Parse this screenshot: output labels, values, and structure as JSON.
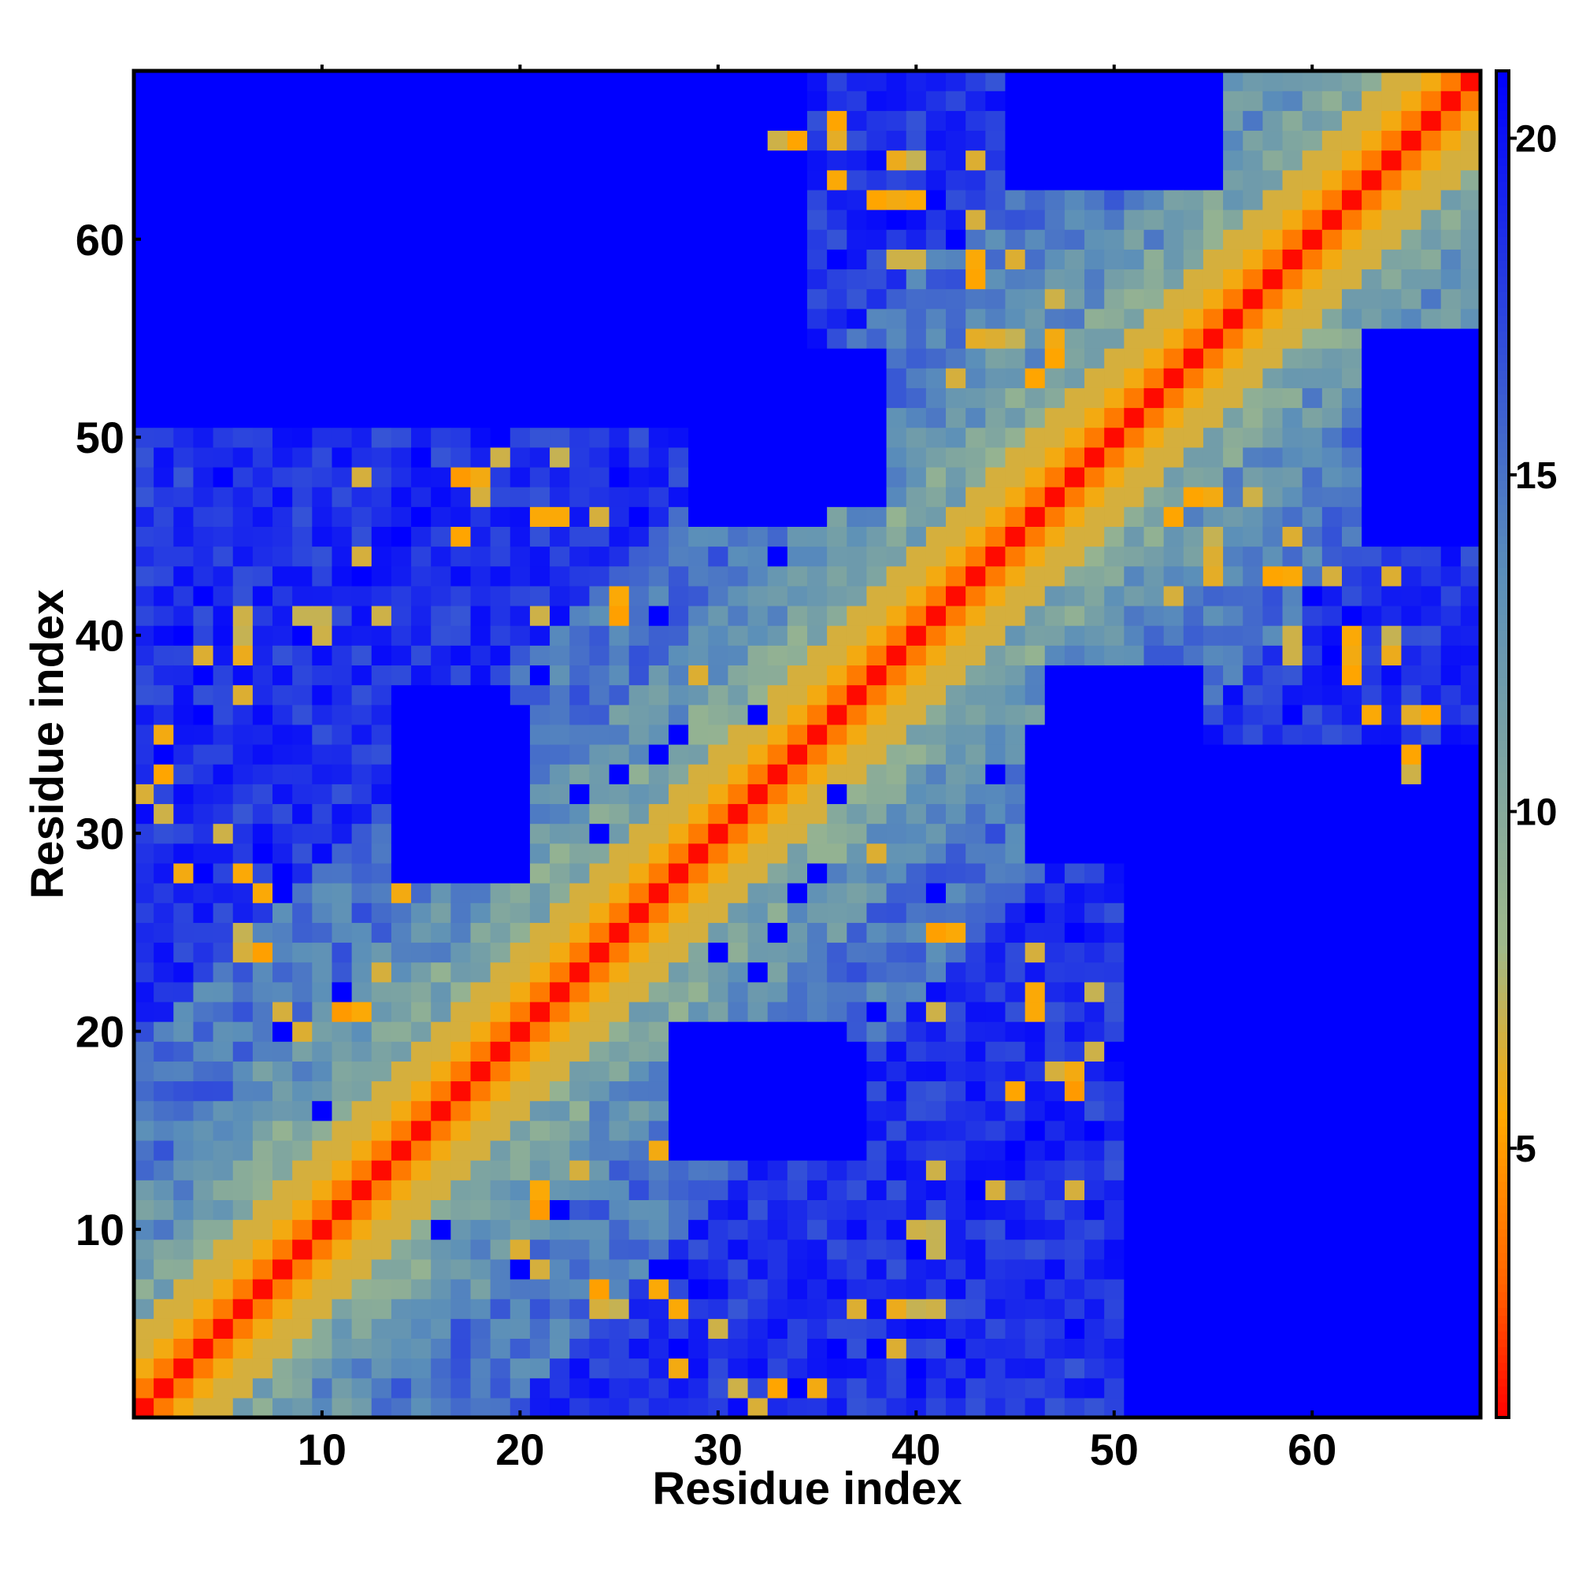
{
  "chart_data": {
    "type": "heatmap",
    "title": "",
    "xlabel": "Residue index",
    "ylabel": "Residue index",
    "n_residues": 68,
    "xlim": [
      0.5,
      68.5
    ],
    "ylim": [
      0.5,
      68.5
    ],
    "x_ticks": [
      10,
      20,
      30,
      40,
      50,
      60
    ],
    "y_ticks": [
      10,
      20,
      30,
      40,
      50,
      60
    ],
    "colorbar": {
      "range": [
        1,
        21
      ],
      "ticks": [
        5,
        10,
        15,
        20
      ],
      "colors": [
        "#ff0000",
        "#ff6400",
        "#ffa800",
        "#9fb98a",
        "#5b8fb9",
        "#0000ff"
      ],
      "color_breaks": [
        3,
        5.5,
        8,
        13.5,
        21
      ]
    },
    "matrix": {
      "symmetric": true,
      "diagonal": {
        "max_offset": 2,
        "values": [
          1.2,
          3.8,
          5.8
        ]
      },
      "band": [
        {
          "offset_range": [
            3,
            4
          ],
          "value": 6.6
        },
        {
          "offset_range": [
            5,
            7
          ],
          "value": 10.8
        },
        {
          "offset_range": [
            8,
            11
          ],
          "value": 12.8
        },
        {
          "offset_range": [
            12,
            18
          ],
          "value": 15.0
        }
      ],
      "far_value": 18.5,
      "blue_regions": [
        {
          "rows": [
            1,
            34
          ],
          "cols": [
            51,
            68
          ],
          "value": 21
        },
        {
          "rows": [
            14,
            20
          ],
          "cols": [
            28,
            36
          ],
          "value": 21
        },
        {
          "rows": [
            29,
            38
          ],
          "cols": [
            47,
            54
          ],
          "value": 21
        },
        {
          "rows": [
            29,
            37
          ],
          "cols": [
            14,
            19
          ],
          "value": 21
        },
        {
          "rows": [
            46,
            53
          ],
          "cols": [
            29,
            35
          ],
          "value": 21
        },
        {
          "rows": [
            52,
            68
          ],
          "cols": [
            1,
            13
          ],
          "value": 21
        },
        {
          "rows": [
            64,
            68
          ],
          "cols": [
            1,
            29
          ],
          "value": 21
        },
        {
          "rows": [
            63,
            68
          ],
          "cols": [
            45,
            55
          ],
          "value": 21
        }
      ],
      "contact_cells": [
        [
          1,
          32,
          6.5
        ],
        [
          5,
          30,
          6.8
        ],
        [
          6,
          24,
          6.2
        ],
        [
          6,
          37,
          6.4
        ],
        [
          6,
          40,
          7.0
        ],
        [
          7,
          24,
          5.2
        ],
        [
          8,
          21,
          6.6
        ],
        [
          10,
          40,
          6.8
        ],
        [
          11,
          21,
          5.0
        ],
        [
          12,
          44,
          6.6
        ],
        [
          13,
          23,
          6.6
        ],
        [
          14,
          27,
          5.8
        ],
        [
          17,
          45,
          5.4
        ],
        [
          17,
          48,
          5.0
        ],
        [
          18,
          47,
          6.0
        ],
        [
          20,
          9,
          6.4
        ],
        [
          21,
          12,
          5.6
        ],
        [
          21,
          41,
          5.2
        ],
        [
          22,
          46,
          6.0
        ],
        [
          24,
          6,
          6.6
        ],
        [
          25,
          6,
          7.0
        ],
        [
          25,
          41,
          5.2
        ],
        [
          25,
          42,
          5.6
        ],
        [
          27,
          7,
          5.6
        ],
        [
          28,
          3,
          5.8
        ],
        [
          28,
          6,
          5.6
        ],
        [
          29,
          38,
          6.4
        ],
        [
          31,
          2,
          6.8
        ],
        [
          33,
          2,
          5.4
        ],
        [
          34,
          65,
          5.4
        ],
        [
          35,
          2,
          5.8
        ],
        [
          36,
          65,
          6.2
        ],
        [
          36,
          66,
          5.4
        ],
        [
          39,
          4,
          6.4
        ],
        [
          39,
          6,
          6.0
        ],
        [
          40,
          59,
          6.8
        ],
        [
          40,
          62,
          5.6
        ],
        [
          40,
          64,
          7.0
        ],
        [
          41,
          6,
          6.8
        ],
        [
          41,
          9,
          7.0
        ],
        [
          41,
          10,
          7.0
        ],
        [
          41,
          13,
          6.8
        ],
        [
          41,
          21,
          6.8
        ],
        [
          42,
          25,
          5.6
        ],
        [
          43,
          58,
          5.4
        ],
        [
          43,
          61,
          6.6
        ],
        [
          44,
          55,
          6.4
        ],
        [
          46,
          21,
          5.6
        ],
        [
          46,
          22,
          5.6
        ],
        [
          46,
          24,
          6.6
        ],
        [
          47,
          18,
          6.6
        ],
        [
          47,
          54,
          5.4
        ],
        [
          47,
          57,
          6.8
        ],
        [
          48,
          12,
          6.6
        ],
        [
          48,
          18,
          5.8
        ],
        [
          49,
          19,
          6.8
        ],
        [
          49,
          22,
          7.0
        ],
        [
          53,
          42,
          6.6
        ],
        [
          53,
          46,
          5.4
        ],
        [
          55,
          43,
          6.2
        ],
        [
          55,
          45,
          7.0
        ],
        [
          55,
          47,
          5.8
        ],
        [
          59,
          39,
          6.8
        ],
        [
          59,
          43,
          5.6
        ],
        [
          59,
          45,
          6.4
        ],
        [
          62,
          38,
          5.4
        ],
        [
          62,
          39,
          5.8
        ],
        [
          63,
          36,
          5.6
        ],
        [
          64,
          39,
          6.0
        ],
        [
          64,
          43,
          6.4
        ],
        [
          65,
          33,
          6.8
        ],
        [
          66,
          36,
          5.4
        ]
      ],
      "blue_cells": [
        [
          2,
          34
        ],
        [
          3,
          40
        ],
        [
          4,
          36
        ],
        [
          6,
          24
        ],
        [
          8,
          20
        ],
        [
          10,
          16
        ],
        [
          11,
          22
        ],
        [
          12,
          43
        ],
        [
          14,
          27
        ],
        [
          15,
          46
        ],
        [
          18,
          35
        ],
        [
          21,
          38
        ],
        [
          22,
          46
        ],
        [
          24,
          30
        ],
        [
          25,
          48
        ],
        [
          27,
          8
        ],
        [
          28,
          4
        ],
        [
          28,
          8
        ],
        [
          29,
          7
        ],
        [
          32,
          23
        ],
        [
          33,
          25
        ],
        [
          34,
          27
        ],
        [
          35,
          28
        ],
        [
          36,
          32
        ],
        [
          38,
          4
        ],
        [
          40,
          9
        ],
        [
          41,
          27
        ],
        [
          42,
          4
        ],
        [
          44,
          33
        ],
        [
          45,
          14
        ],
        [
          46,
          26
        ],
        [
          48,
          5
        ],
        [
          48,
          12
        ],
        [
          49,
          15
        ],
        [
          50,
          19
        ],
        [
          52,
          6
        ],
        [
          53,
          32
        ],
        [
          54,
          35
        ],
        [
          55,
          17
        ],
        [
          57,
          30
        ],
        [
          58,
          23
        ],
        [
          59,
          36
        ],
        [
          60,
          42
        ],
        [
          61,
          39
        ],
        [
          62,
          41
        ],
        [
          64,
          27
        ],
        [
          66,
          14
        ],
        [
          67,
          30
        ]
      ]
    }
  }
}
